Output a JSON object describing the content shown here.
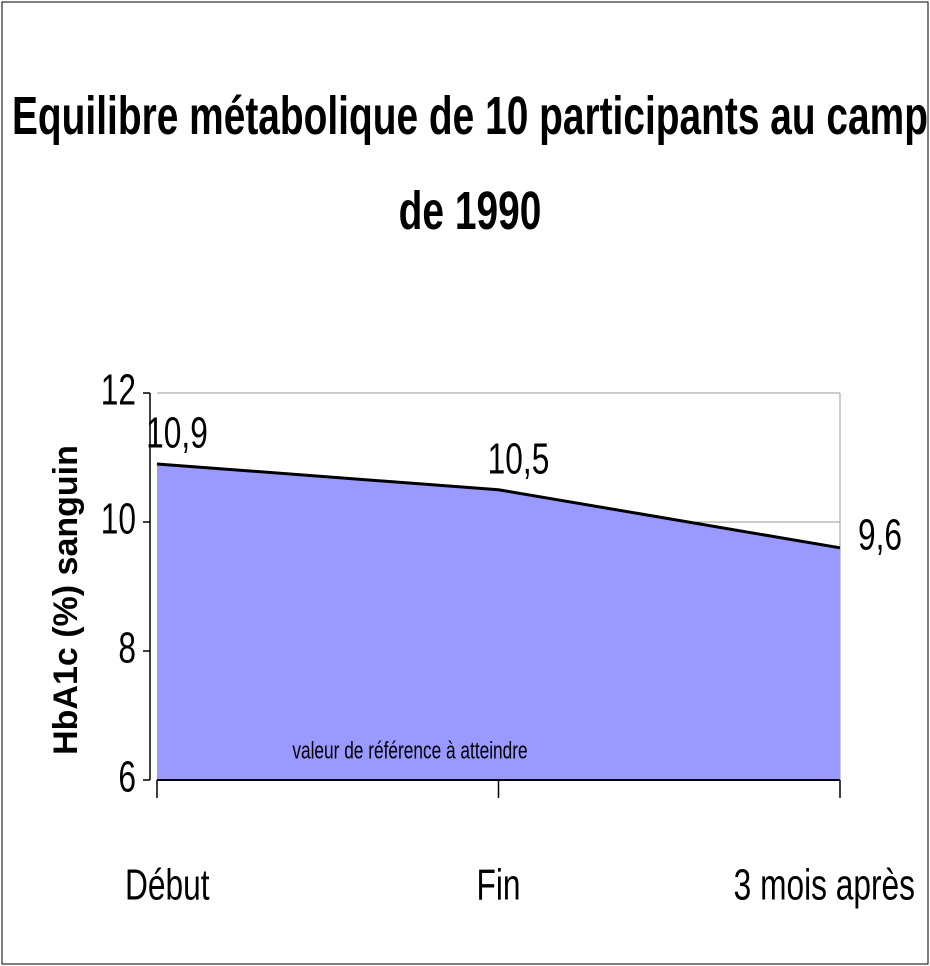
{
  "chart_data": {
    "type": "area",
    "title": "Equilibre métabolique de 10 participants au camp de 1990",
    "y_label": "HbA1c (%) sanguin",
    "categories": [
      "Début",
      "Fin",
      "3 mois après"
    ],
    "values": [
      10.9,
      10.5,
      9.6
    ],
    "value_labels": [
      "10,9",
      "10,5",
      "9,6"
    ],
    "color": "#9999ff",
    "annotation": "valeur de référence à atteindre",
    "ylim": [
      6,
      12
    ],
    "yticks": [
      6,
      8,
      10,
      12
    ],
    "grid": true
  }
}
